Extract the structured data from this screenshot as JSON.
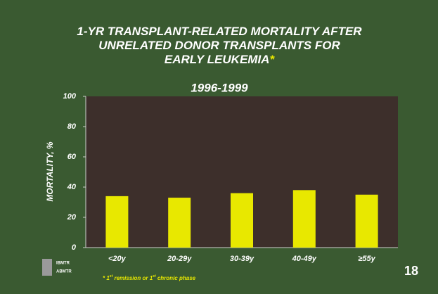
{
  "chart_data": {
    "type": "bar",
    "title": [
      "1-YR TRANSPLANT-RELATED MORTALITY AFTER",
      "UNRELATED DONOR TRANSPLANTS FOR",
      "EARLY LEUKEMIA"
    ],
    "title_marker": "*",
    "subtitle": "1996-1999",
    "y_label": "MORTALITY, %",
    "categories": [
      "<20y",
      "20-29y",
      "30-39y",
      "40-49y",
      "≥55y"
    ],
    "values": [
      34,
      33,
      36,
      38,
      35
    ],
    "color": "#e8e800",
    "ylim": [
      0,
      100
    ],
    "yticks": [
      0,
      20,
      40,
      60,
      80,
      100
    ],
    "footnote": [
      "* 1",
      "st",
      " remission or 1",
      "st",
      " chronic phase"
    ],
    "page_number": "18",
    "logo": [
      "IBMTR",
      "ABMTR"
    ]
  }
}
